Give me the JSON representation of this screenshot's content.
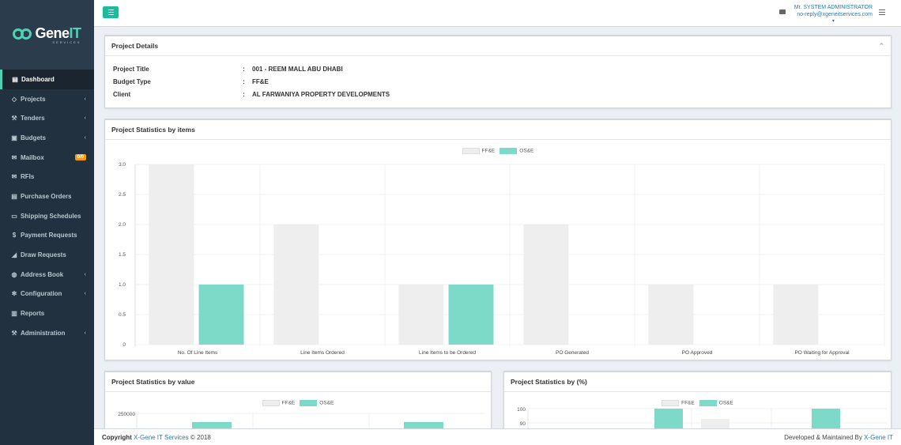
{
  "logo": {
    "main_a": "Gene",
    "main_b": "IT",
    "sub": "SERVICES"
  },
  "sidebar": {
    "items": [
      {
        "label": "Dashboard",
        "icon": "dashboard-icon",
        "glyph": "▤",
        "active": true,
        "chevron": false
      },
      {
        "label": "Projects",
        "icon": "diamond-icon",
        "glyph": "◇",
        "chevron": true
      },
      {
        "label": "Tenders",
        "icon": "gavel-icon",
        "glyph": "⚒",
        "chevron": true
      },
      {
        "label": "Budgets",
        "icon": "briefcase-icon",
        "glyph": "▣",
        "chevron": true
      },
      {
        "label": "Mailbox",
        "icon": "envelope-icon",
        "glyph": "✉",
        "chevron": false,
        "badge": "0/0"
      },
      {
        "label": "RFIs",
        "icon": "envelope-icon",
        "glyph": "✉",
        "chevron": false
      },
      {
        "label": "Purchase Orders",
        "icon": "list-icon",
        "glyph": "▤",
        "chevron": false
      },
      {
        "label": "Shipping Schedules",
        "icon": "bus-icon",
        "glyph": "▭",
        "chevron": false
      },
      {
        "label": "Payment Requests",
        "icon": "dollar-icon",
        "glyph": "$",
        "chevron": false
      },
      {
        "label": "Draw Requests",
        "icon": "area-chart-icon",
        "glyph": "◢",
        "chevron": false
      },
      {
        "label": "Address Book",
        "icon": "globe-icon",
        "glyph": "◍",
        "chevron": true
      },
      {
        "label": "Configuration",
        "icon": "gears-icon",
        "glyph": "✻",
        "chevron": true
      },
      {
        "label": "Reports",
        "icon": "bar-chart-icon",
        "glyph": "▥",
        "chevron": false
      },
      {
        "label": "Administration",
        "icon": "wrench-icon",
        "glyph": "⚒",
        "chevron": true
      }
    ]
  },
  "topbar": {
    "user_name": "Mr. SYSTEM ADMINISTRATOR",
    "user_email": "no-reply@xgeneitservices.com",
    "caret": "▾"
  },
  "project_details": {
    "title": "Project Details",
    "collapse": "⌃",
    "rows": [
      {
        "label": "Project Title",
        "value": "001 - REEM MALL ABU DHABI"
      },
      {
        "label": "Budget Type",
        "value": "FF&E"
      },
      {
        "label": "Client",
        "value": "AL FARWANIYA PROPERTY DEVELOPMENTS"
      }
    ]
  },
  "stats_items": {
    "title": "Project Statistics by items"
  },
  "stats_value": {
    "title": "Project Statistics by value"
  },
  "stats_pct": {
    "title": "Project Statistics by (%)"
  },
  "colon": ":",
  "colors": {
    "ffe": "#eeeeee",
    "ose": "#7dd9c8",
    "accent": "#1abc9c",
    "sidebar": "#22313f"
  },
  "chart_data": [
    {
      "type": "bar",
      "title": "Project Statistics by items",
      "categories": [
        "No. Of Line Items",
        "Line Items Ordered",
        "Line Items to be Ordered",
        "PO Generated",
        "PO Approved",
        "PO Waiting for Approval"
      ],
      "series": [
        {
          "name": "FF&E",
          "values": [
            3,
            2,
            1,
            2,
            1,
            1
          ]
        },
        {
          "name": "OS&E",
          "values": [
            1,
            0,
            1,
            0,
            0,
            0
          ]
        }
      ],
      "yticks": [
        "3.0",
        "2.5",
        "2.0",
        "1.5",
        "1.0",
        "0.5",
        "0"
      ],
      "ylim": [
        0,
        3
      ],
      "legend": "top"
    },
    {
      "type": "bar",
      "title": "Project Statistics by value",
      "series": [
        {
          "name": "FF&E"
        },
        {
          "name": "OS&E"
        }
      ],
      "yticks": [
        "250000"
      ],
      "legend": "top"
    },
    {
      "type": "bar",
      "title": "Project Statistics by (%)",
      "series": [
        {
          "name": "FF&E"
        },
        {
          "name": "OS&E"
        }
      ],
      "yticks": [
        "100",
        "90"
      ],
      "legend": "top"
    }
  ],
  "footer": {
    "copyright_prefix": "Copyright",
    "copyright_link": "X-Gene IT Services",
    "copyright_suffix": "© 2018",
    "right_prefix": "Developed & Maintained By",
    "right_link": "X-Gene IT"
  }
}
